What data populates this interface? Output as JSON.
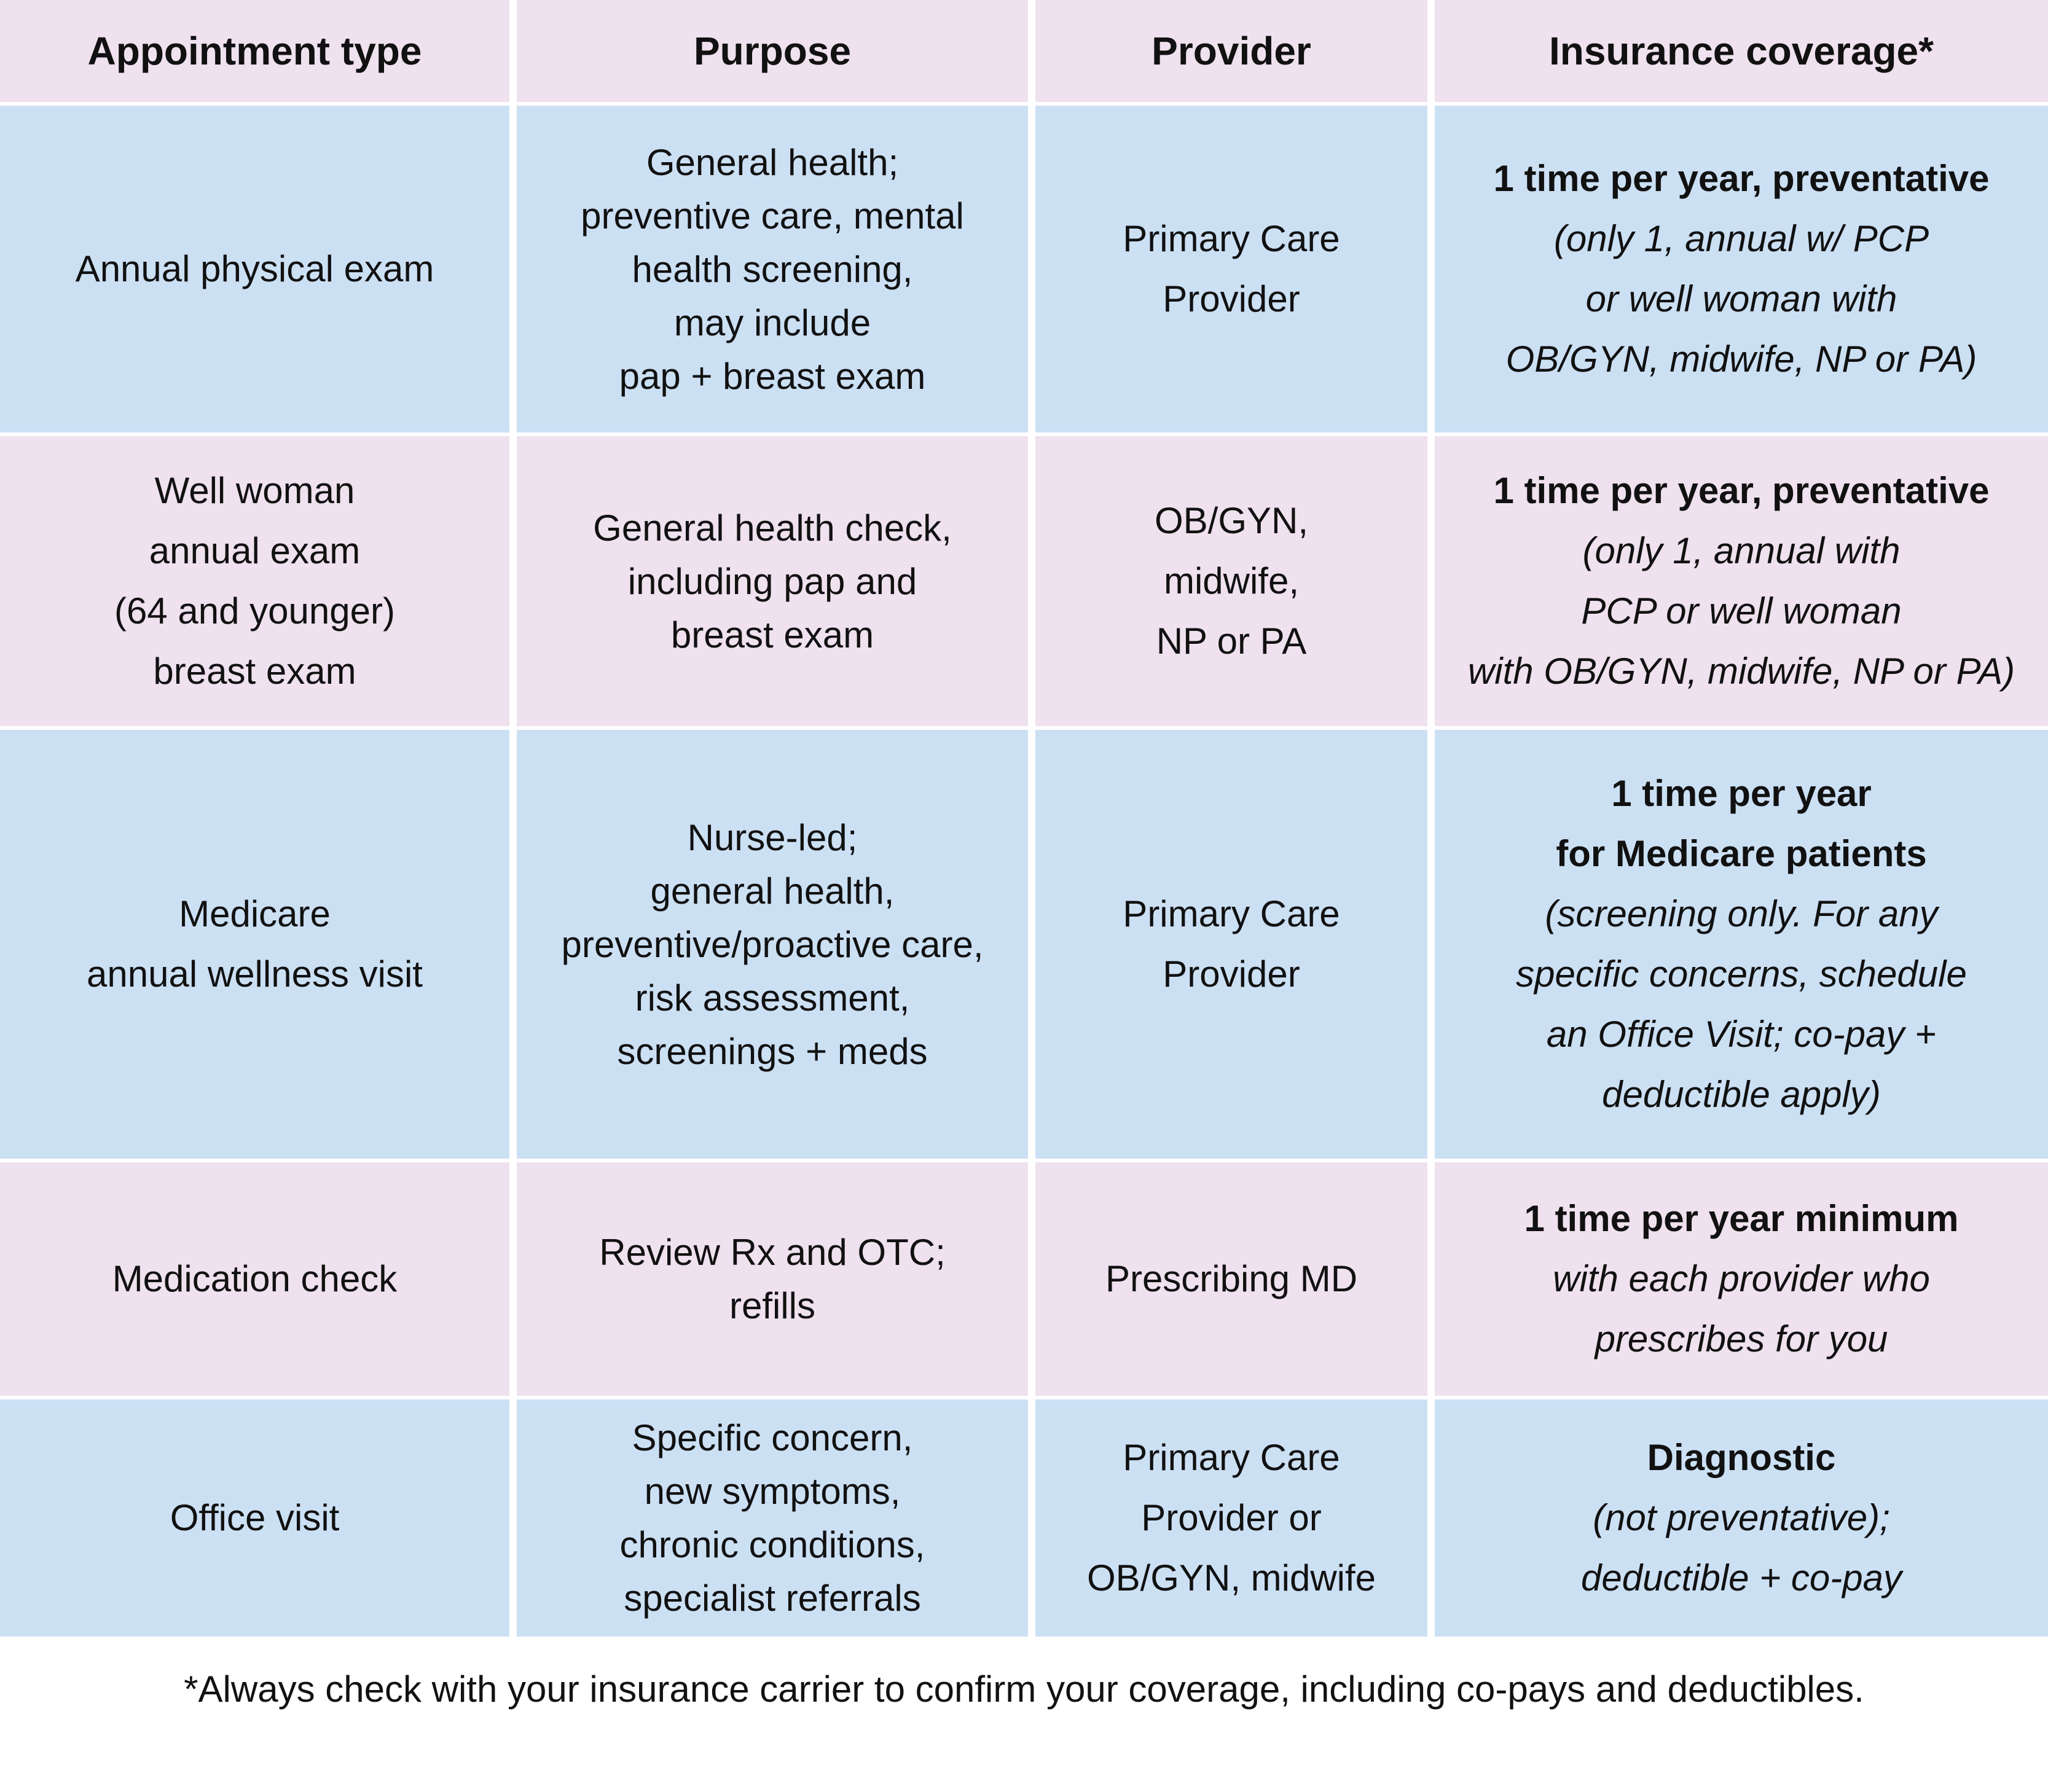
{
  "header": [
    "Appointment type",
    "Purpose",
    "Provider",
    "Insurance coverage*"
  ],
  "rows": [
    {
      "type": [
        "Annual physical exam"
      ],
      "purpose": [
        "General health;",
        "preventive care, mental",
        "health screening,",
        "may include",
        "pap + breast exam"
      ],
      "provider": [
        "Primary Care",
        "Provider"
      ],
      "coverage_bold": [
        "1 time per year, preventative"
      ],
      "coverage_italic": [
        "(only 1, annual w/ PCP",
        "or well woman with",
        "OB/GYN, midwife, NP or PA)"
      ]
    },
    {
      "type": [
        "Well woman",
        "annual exam",
        "(64 and younger)",
        "breast exam"
      ],
      "purpose": [
        "General health check,",
        "including pap and",
        "breast exam"
      ],
      "provider": [
        "OB/GYN,",
        "midwife,",
        "NP or PA"
      ],
      "coverage_bold": [
        "1 time per year, preventative"
      ],
      "coverage_italic": [
        "(only 1, annual with",
        "PCP or well woman",
        "with OB/GYN, midwife, NP or PA)"
      ]
    },
    {
      "type": [
        "Medicare",
        "annual wellness visit"
      ],
      "purpose": [
        "Nurse-led;",
        "general health,",
        "preventive/proactive care,",
        "risk assessment,",
        "screenings + meds"
      ],
      "provider": [
        "Primary Care",
        "Provider"
      ],
      "coverage_bold": [
        "1 time per year",
        "for Medicare patients"
      ],
      "coverage_italic": [
        "(screening only. For any",
        "specific concerns, schedule",
        "an Office Visit; co-pay +",
        "deductible apply)"
      ]
    },
    {
      "type": [
        "Medication check"
      ],
      "purpose": [
        "Review Rx and OTC;",
        "refills"
      ],
      "provider": [
        "Prescribing MD"
      ],
      "coverage_bold": [
        "1 time per year minimum"
      ],
      "coverage_italic": [
        "with each provider who",
        "prescribes for you"
      ]
    },
    {
      "type": [
        "Office visit"
      ],
      "purpose": [
        "Specific concern,",
        "new symptoms,",
        "chronic conditions,",
        "specialist referrals"
      ],
      "provider": [
        "Primary Care",
        "Provider or",
        "OB/GYN, midwife"
      ],
      "coverage_bold": [
        "Diagnostic"
      ],
      "coverage_italic": [
        "(not preventative);",
        "deductible + co-pay"
      ]
    }
  ],
  "footnote": "*Always check with your insurance carrier to confirm your coverage, including co-pays and deductibles."
}
